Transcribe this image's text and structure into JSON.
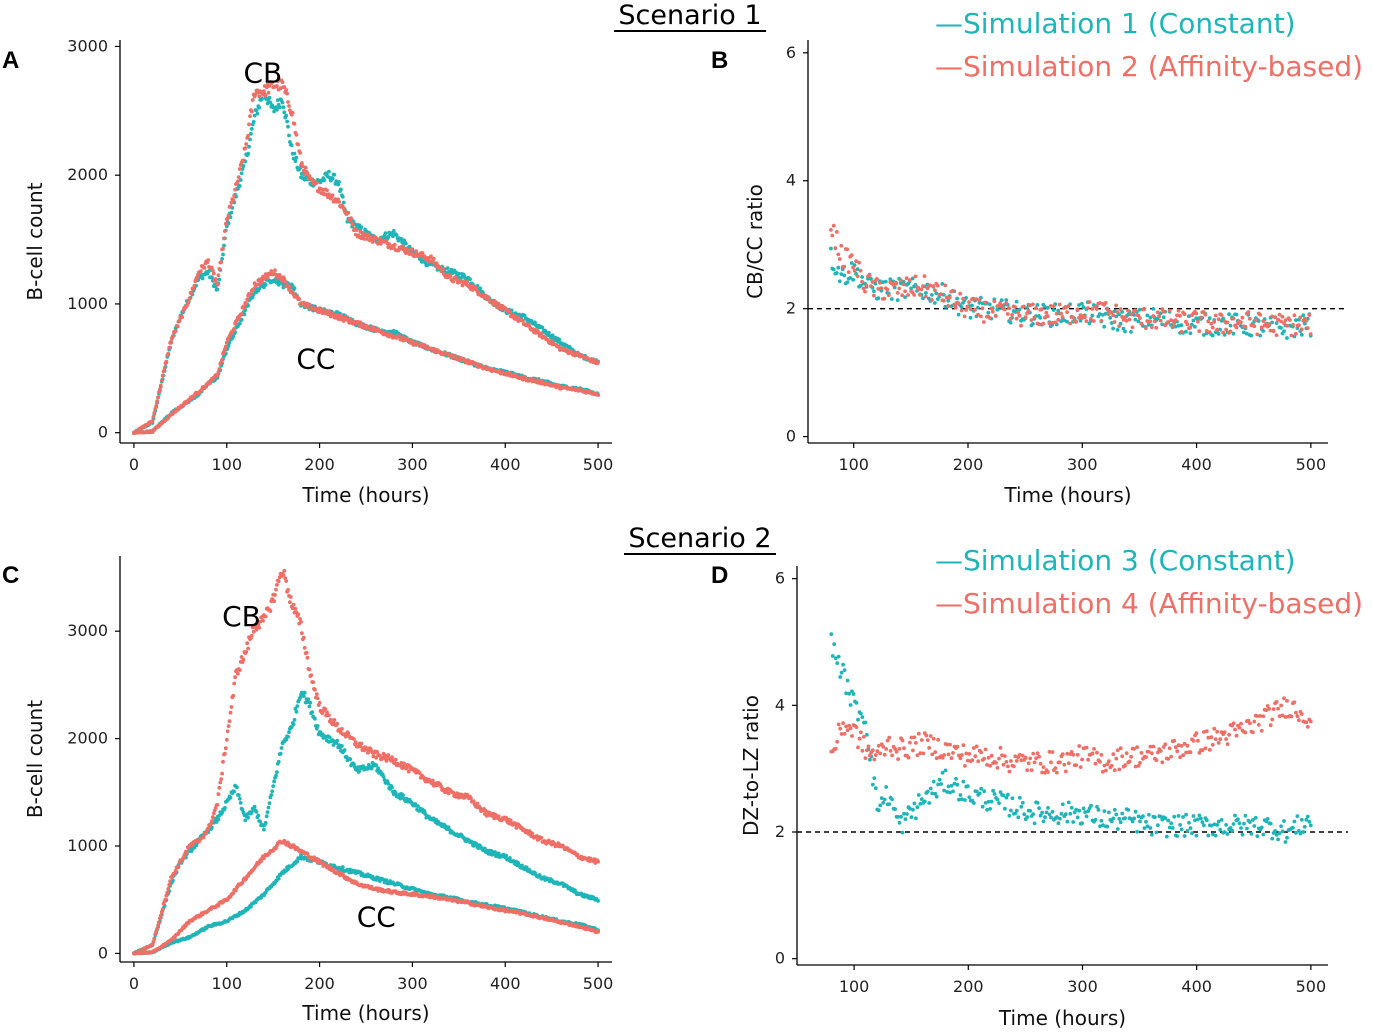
{
  "colors": {
    "constant": "#1fb5b8",
    "affinity": "#ee6f66",
    "axis": "#000000",
    "dashed": "#000000"
  },
  "scenarios": [
    {
      "title": "Scenario 1",
      "legend": [
        "—Simulation 1 (Constant)",
        "—Simulation 2 (Affinity-based)"
      ]
    },
    {
      "title": "Scenario 2",
      "legend": [
        "—Simulation 3 (Constant)",
        "—Simulation 4 (Affinity-based)"
      ]
    }
  ],
  "chart_data": [
    {
      "panel": "A",
      "type": "scatter",
      "xlabel": "Time (hours)",
      "ylabel": "B-cell count",
      "xlim": [
        -15,
        515
      ],
      "ylim": [
        -80,
        3050
      ],
      "xticks": [
        0,
        100,
        200,
        300,
        400,
        500
      ],
      "yticks": [
        0,
        1000,
        2000,
        3000
      ],
      "annotations": [
        {
          "text": "CB",
          "x": 118,
          "y": 2720
        },
        {
          "text": "CC",
          "x": 175,
          "y": 500
        }
      ],
      "series": [
        {
          "name": "CB - Simulation 1 (Constant)",
          "color": "constant",
          "x": [
            0,
            20,
            40,
            50,
            60,
            70,
            80,
            90,
            100,
            110,
            120,
            130,
            140,
            150,
            160,
            170,
            180,
            190,
            200,
            210,
            220,
            230,
            240,
            260,
            280,
            300,
            320,
            340,
            360,
            380,
            400,
            420,
            440,
            460,
            480,
            500
          ],
          "y": [
            0,
            80,
            700,
            900,
            1050,
            1200,
            1250,
            1100,
            1600,
            1850,
            2100,
            2450,
            2650,
            2500,
            2600,
            2200,
            2000,
            1950,
            1950,
            2000,
            1950,
            1650,
            1600,
            1500,
            1550,
            1400,
            1300,
            1250,
            1200,
            1050,
            950,
            900,
            800,
            700,
            600,
            550
          ]
        },
        {
          "name": "CB - Simulation 2 (Affinity-based)",
          "color": "affinity",
          "x": [
            0,
            20,
            40,
            50,
            60,
            70,
            80,
            90,
            100,
            110,
            120,
            130,
            140,
            150,
            160,
            170,
            180,
            190,
            200,
            210,
            220,
            230,
            240,
            260,
            280,
            300,
            320,
            340,
            360,
            380,
            400,
            420,
            440,
            460,
            480,
            500
          ],
          "y": [
            0,
            90,
            720,
            880,
            1050,
            1250,
            1330,
            1150,
            1650,
            1900,
            2200,
            2650,
            2650,
            2700,
            2700,
            2500,
            2100,
            1950,
            1900,
            1850,
            1800,
            1700,
            1550,
            1500,
            1450,
            1400,
            1350,
            1200,
            1150,
            1050,
            950,
            850,
            750,
            650,
            600,
            540
          ]
        },
        {
          "name": "CC - Simulation 1 (Constant)",
          "color": "constant",
          "x": [
            0,
            20,
            40,
            50,
            60,
            70,
            80,
            90,
            100,
            110,
            120,
            130,
            140,
            150,
            160,
            170,
            180,
            200,
            220,
            240,
            260,
            280,
            300,
            320,
            340,
            360,
            380,
            400,
            420,
            440,
            460,
            480,
            500
          ],
          "y": [
            0,
            10,
            150,
            200,
            250,
            300,
            380,
            430,
            650,
            800,
            950,
            1100,
            1150,
            1200,
            1150,
            1150,
            1000,
            950,
            920,
            850,
            800,
            780,
            700,
            650,
            600,
            550,
            500,
            470,
            430,
            400,
            360,
            340,
            300
          ]
        },
        {
          "name": "CC - Simulation 2 (Affinity-based)",
          "color": "affinity",
          "x": [
            0,
            20,
            40,
            50,
            60,
            70,
            80,
            90,
            100,
            110,
            120,
            130,
            140,
            150,
            160,
            170,
            180,
            200,
            220,
            240,
            260,
            280,
            300,
            320,
            340,
            360,
            380,
            400,
            420,
            440,
            460,
            480,
            500
          ],
          "y": [
            0,
            10,
            140,
            200,
            260,
            320,
            380,
            450,
            700,
            850,
            1000,
            1150,
            1200,
            1250,
            1200,
            1100,
            1000,
            950,
            900,
            850,
            800,
            750,
            700,
            650,
            600,
            550,
            500,
            460,
            420,
            390,
            350,
            330,
            300
          ]
        }
      ]
    },
    {
      "panel": "B",
      "type": "scatter",
      "xlabel": "Time (hours)",
      "ylabel": "CB/CC ratio",
      "xlim": [
        60,
        515
      ],
      "ylim": [
        -0.1,
        6.2
      ],
      "xticks": [
        100,
        200,
        300,
        400,
        500
      ],
      "yticks": [
        0,
        2,
        4,
        6
      ],
      "reference_line": 2,
      "series": [
        {
          "name": "Simulation 1 (Constant)",
          "color": "constant",
          "x": [
            80,
            90,
            100,
            110,
            120,
            140,
            160,
            180,
            200,
            220,
            240,
            260,
            280,
            300,
            320,
            340,
            360,
            380,
            400,
            420,
            440,
            460,
            480,
            500
          ],
          "y": [
            2.8,
            2.5,
            2.6,
            2.4,
            2.3,
            2.3,
            2.3,
            2.2,
            2.0,
            2.0,
            1.95,
            1.9,
            1.9,
            1.95,
            1.85,
            1.8,
            1.85,
            1.8,
            1.75,
            1.75,
            1.75,
            1.7,
            1.7,
            1.75
          ]
        },
        {
          "name": "Simulation 2 (Affinity-based)",
          "color": "affinity",
          "x": [
            80,
            90,
            100,
            110,
            120,
            140,
            160,
            180,
            200,
            220,
            240,
            260,
            280,
            300,
            320,
            340,
            360,
            380,
            400,
            420,
            440,
            460,
            480,
            500
          ],
          "y": [
            3.3,
            2.8,
            2.7,
            2.4,
            2.3,
            2.3,
            2.35,
            2.2,
            2.0,
            1.95,
            1.9,
            1.9,
            1.9,
            1.95,
            1.95,
            1.85,
            1.85,
            1.8,
            1.8,
            1.75,
            1.8,
            1.75,
            1.75,
            1.75
          ]
        }
      ]
    },
    {
      "panel": "C",
      "type": "scatter",
      "xlabel": "Time (hours)",
      "ylabel": "B-cell count",
      "xlim": [
        -15,
        515
      ],
      "ylim": [
        -80,
        3700
      ],
      "xticks": [
        0,
        100,
        200,
        300,
        400,
        500
      ],
      "yticks": [
        0,
        1000,
        2000,
        3000
      ],
      "annotations": [
        {
          "text": "CB",
          "x": 95,
          "y": 3050
        },
        {
          "text": "CC",
          "x": 240,
          "y": 250
        }
      ],
      "series": [
        {
          "name": "CB - Simulation 3 (Constant)",
          "color": "constant",
          "x": [
            0,
            20,
            40,
            50,
            60,
            70,
            80,
            90,
            100,
            110,
            120,
            130,
            140,
            150,
            160,
            170,
            180,
            190,
            200,
            220,
            240,
            260,
            280,
            300,
            320,
            340,
            360,
            380,
            400,
            420,
            440,
            460,
            480,
            500
          ],
          "y": [
            0,
            80,
            650,
            850,
            950,
            1050,
            1150,
            1250,
            1400,
            1550,
            1250,
            1350,
            1150,
            1550,
            1950,
            2100,
            2450,
            2300,
            2050,
            1950,
            1700,
            1750,
            1500,
            1400,
            1250,
            1150,
            1050,
            950,
            900,
            800,
            700,
            650,
            550,
            500
          ]
        },
        {
          "name": "CB - Simulation 4 (Affinity-based)",
          "color": "affinity",
          "x": [
            0,
            20,
            40,
            50,
            60,
            70,
            80,
            90,
            100,
            110,
            120,
            130,
            140,
            150,
            160,
            170,
            180,
            190,
            200,
            220,
            240,
            260,
            280,
            300,
            320,
            340,
            360,
            380,
            400,
            420,
            440,
            460,
            480,
            500
          ],
          "y": [
            0,
            80,
            700,
            850,
            1000,
            1050,
            1150,
            1400,
            2000,
            2600,
            2800,
            3050,
            3100,
            3300,
            3580,
            3250,
            3050,
            2600,
            2300,
            2100,
            1950,
            1850,
            1800,
            1700,
            1600,
            1500,
            1450,
            1300,
            1250,
            1150,
            1050,
            1000,
            900,
            850
          ]
        },
        {
          "name": "CC - Simulation 3 (Constant)",
          "color": "constant",
          "x": [
            0,
            20,
            40,
            60,
            80,
            100,
            120,
            140,
            160,
            180,
            200,
            220,
            240,
            260,
            280,
            300,
            320,
            340,
            360,
            380,
            400,
            420,
            440,
            460,
            480,
            500
          ],
          "y": [
            0,
            10,
            100,
            150,
            250,
            300,
            400,
            550,
            750,
            900,
            850,
            800,
            750,
            700,
            650,
            600,
            550,
            520,
            480,
            450,
            420,
            380,
            340,
            300,
            270,
            220
          ]
        },
        {
          "name": "CC - Simulation 4 (Affinity-based)",
          "color": "affinity",
          "x": [
            0,
            20,
            40,
            60,
            80,
            100,
            120,
            140,
            160,
            180,
            200,
            220,
            240,
            260,
            280,
            300,
            320,
            340,
            360,
            380,
            400,
            420,
            440,
            460,
            480,
            500
          ],
          "y": [
            0,
            10,
            120,
            300,
            400,
            500,
            700,
            900,
            1050,
            950,
            850,
            750,
            650,
            600,
            570,
            550,
            530,
            500,
            470,
            430,
            400,
            370,
            330,
            290,
            250,
            200
          ]
        }
      ]
    },
    {
      "panel": "D",
      "type": "scatter",
      "xlabel": "Time (hours)",
      "ylabel": "DZ-to-LZ ratio",
      "xlim": [
        50,
        515
      ],
      "ylim": [
        -0.1,
        6.2
      ],
      "xticks": [
        100,
        200,
        300,
        400,
        500
      ],
      "yticks": [
        0,
        2,
        4,
        6
      ],
      "reference_line": 2,
      "series": [
        {
          "name": "Simulation 3 (Constant)",
          "color": "constant",
          "x": [
            80,
            90,
            100,
            110,
            120,
            130,
            140,
            160,
            180,
            200,
            220,
            240,
            260,
            280,
            300,
            320,
            340,
            360,
            380,
            400,
            420,
            440,
            460,
            480,
            500
          ],
          "y": [
            5.0,
            4.5,
            4.0,
            3.8,
            2.4,
            2.6,
            2.1,
            2.5,
            2.8,
            2.6,
            2.5,
            2.4,
            2.3,
            2.3,
            2.3,
            2.2,
            2.2,
            2.1,
            2.1,
            2.1,
            2.1,
            2.1,
            2.1,
            2.0,
            2.2
          ]
        },
        {
          "name": "Simulation 4 (Affinity-based)",
          "color": "affinity",
          "x": [
            80,
            90,
            100,
            110,
            120,
            130,
            140,
            160,
            180,
            200,
            220,
            240,
            260,
            280,
            300,
            320,
            340,
            360,
            380,
            400,
            420,
            440,
            460,
            480,
            500
          ],
          "y": [
            3.2,
            3.7,
            3.6,
            3.3,
            3.2,
            3.4,
            3.3,
            3.4,
            3.3,
            3.2,
            3.2,
            3.1,
            3.1,
            3.1,
            3.2,
            3.1,
            3.2,
            3.2,
            3.3,
            3.4,
            3.5,
            3.6,
            3.8,
            4.0,
            3.8
          ]
        }
      ]
    }
  ]
}
